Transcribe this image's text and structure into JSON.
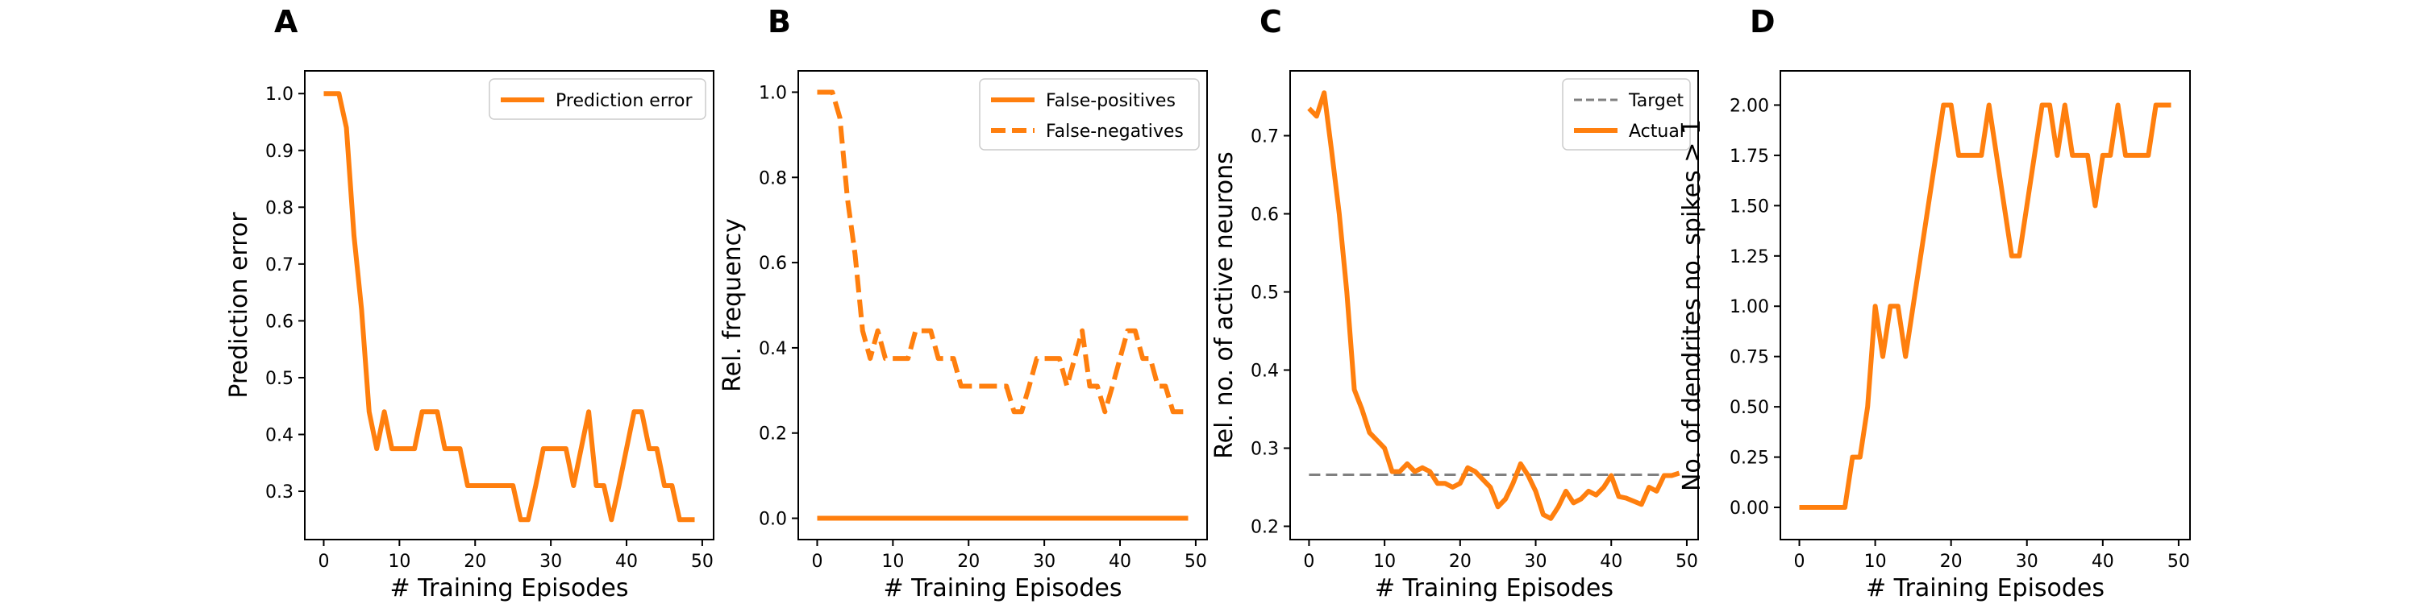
{
  "figure": {
    "background": "#ffffff"
  },
  "chart_data": [
    {
      "panel": "A",
      "type": "line",
      "xlabel": "# Training Episodes",
      "ylabel": "Prediction error",
      "xlim": [
        -2.5,
        51.5
      ],
      "ylim": [
        0.215,
        1.04
      ],
      "xticks": [
        0,
        10,
        20,
        30,
        40,
        50
      ],
      "yticks": [
        0.3,
        0.4,
        0.5,
        0.6,
        0.7,
        0.8,
        0.9,
        1.0
      ],
      "ytick_labels": [
        "0.3",
        "0.4",
        "0.5",
        "0.6",
        "0.7",
        "0.8",
        "0.9",
        "1.0"
      ],
      "grid": false,
      "legend": "top-right",
      "series": [
        {
          "name": "Prediction error",
          "color": "#ff7f0e",
          "style": "solid",
          "x": [
            0,
            1,
            2,
            3,
            4,
            5,
            6,
            7,
            8,
            9,
            10,
            11,
            12,
            13,
            14,
            15,
            16,
            17,
            18,
            19,
            20,
            21,
            22,
            23,
            24,
            25,
            26,
            27,
            28,
            29,
            30,
            31,
            32,
            33,
            34,
            35,
            36,
            37,
            38,
            39,
            40,
            41,
            42,
            43,
            44,
            45,
            46,
            47,
            48,
            49
          ],
          "y": [
            1.0,
            1.0,
            1.0,
            0.94,
            0.75,
            0.62,
            0.44,
            0.375,
            0.44,
            0.375,
            0.375,
            0.375,
            0.375,
            0.44,
            0.44,
            0.44,
            0.375,
            0.375,
            0.375,
            0.31,
            0.31,
            0.31,
            0.31,
            0.31,
            0.31,
            0.31,
            0.25,
            0.25,
            0.31,
            0.375,
            0.375,
            0.375,
            0.375,
            0.31,
            0.375,
            0.44,
            0.31,
            0.31,
            0.25,
            0.31,
            0.375,
            0.44,
            0.44,
            0.375,
            0.375,
            0.31,
            0.31,
            0.25,
            0.25,
            0.25
          ]
        }
      ]
    },
    {
      "panel": "B",
      "type": "line",
      "xlabel": "# Training Episodes",
      "ylabel": "Rel. frequency",
      "xlim": [
        -2.5,
        51.5
      ],
      "ylim": [
        -0.05,
        1.05
      ],
      "xticks": [
        0,
        10,
        20,
        30,
        40,
        50
      ],
      "yticks": [
        0.0,
        0.2,
        0.4,
        0.6,
        0.8,
        1.0
      ],
      "ytick_labels": [
        "0.0",
        "0.2",
        "0.4",
        "0.6",
        "0.8",
        "1.0"
      ],
      "grid": false,
      "legend": "top-right",
      "series": [
        {
          "name": "False-positives",
          "color": "#ff7f0e",
          "style": "solid",
          "x": [
            0,
            49
          ],
          "y": [
            0.0,
            0.0
          ]
        },
        {
          "name": "False-negatives",
          "color": "#ff7f0e",
          "style": "dashed",
          "x": [
            0,
            1,
            2,
            3,
            4,
            5,
            6,
            7,
            8,
            9,
            10,
            11,
            12,
            13,
            14,
            15,
            16,
            17,
            18,
            19,
            20,
            21,
            22,
            23,
            24,
            25,
            26,
            27,
            28,
            29,
            30,
            31,
            32,
            33,
            34,
            35,
            36,
            37,
            38,
            39,
            40,
            41,
            42,
            43,
            44,
            45,
            46,
            47,
            48,
            49
          ],
          "y": [
            1.0,
            1.0,
            1.0,
            0.94,
            0.75,
            0.62,
            0.44,
            0.375,
            0.44,
            0.375,
            0.375,
            0.375,
            0.375,
            0.44,
            0.44,
            0.44,
            0.375,
            0.375,
            0.375,
            0.31,
            0.31,
            0.31,
            0.31,
            0.31,
            0.31,
            0.31,
            0.25,
            0.25,
            0.31,
            0.375,
            0.375,
            0.375,
            0.375,
            0.31,
            0.375,
            0.44,
            0.31,
            0.31,
            0.25,
            0.31,
            0.375,
            0.44,
            0.44,
            0.375,
            0.375,
            0.31,
            0.31,
            0.25,
            0.25,
            0.25
          ]
        }
      ]
    },
    {
      "panel": "C",
      "type": "line",
      "xlabel": "# Training Episodes",
      "ylabel": "Rel. no. of active neurons",
      "xlim": [
        -2.5,
        51.5
      ],
      "ylim": [
        0.183,
        0.783
      ],
      "xticks": [
        0,
        10,
        20,
        30,
        40,
        50
      ],
      "yticks": [
        0.2,
        0.3,
        0.4,
        0.5,
        0.6,
        0.7
      ],
      "ytick_labels": [
        "0.2",
        "0.3",
        "0.4",
        "0.5",
        "0.6",
        "0.7"
      ],
      "grid": false,
      "legend": "top-right",
      "series": [
        {
          "name": "Target",
          "color": "#808080",
          "style": "dashed",
          "x": [
            0,
            49
          ],
          "y": [
            0.266,
            0.266
          ]
        },
        {
          "name": "Actual",
          "color": "#ff7f0e",
          "style": "solid",
          "x": [
            0,
            1,
            2,
            3,
            4,
            5,
            6,
            7,
            8,
            9,
            10,
            11,
            12,
            13,
            14,
            15,
            16,
            17,
            18,
            19,
            20,
            21,
            22,
            23,
            24,
            25,
            26,
            27,
            28,
            29,
            30,
            31,
            32,
            33,
            34,
            35,
            36,
            37,
            38,
            39,
            40,
            41,
            42,
            43,
            44,
            45,
            46,
            47,
            48,
            49
          ],
          "y": [
            0.735,
            0.725,
            0.755,
            0.68,
            0.6,
            0.5,
            0.375,
            0.35,
            0.32,
            0.31,
            0.3,
            0.27,
            0.27,
            0.28,
            0.27,
            0.275,
            0.27,
            0.255,
            0.255,
            0.25,
            0.255,
            0.275,
            0.27,
            0.26,
            0.25,
            0.225,
            0.235,
            0.255,
            0.28,
            0.265,
            0.245,
            0.215,
            0.21,
            0.225,
            0.245,
            0.23,
            0.235,
            0.245,
            0.24,
            0.25,
            0.265,
            0.238,
            0.236,
            0.232,
            0.228,
            0.25,
            0.245,
            0.265,
            0.265,
            0.268
          ]
        }
      ]
    },
    {
      "panel": "D",
      "type": "line",
      "xlabel": "# Training Episodes",
      "ylabel": "No. of dendrites no. spikes > 1",
      "xlim": [
        -2.5,
        51.5
      ],
      "ylim": [
        -0.16,
        2.17
      ],
      "xticks": [
        0,
        10,
        20,
        30,
        40,
        50
      ],
      "yticks": [
        0.0,
        0.25,
        0.5,
        0.75,
        1.0,
        1.25,
        1.5,
        1.75,
        2.0
      ],
      "ytick_labels": [
        "0.00",
        "0.25",
        "0.50",
        "0.75",
        "1.00",
        "1.25",
        "1.50",
        "1.75",
        "2.00"
      ],
      "grid": false,
      "legend": "none",
      "series": [
        {
          "color": "#ff7f0e",
          "style": "solid",
          "x": [
            0,
            1,
            2,
            3,
            4,
            5,
            6,
            7,
            8,
            9,
            10,
            11,
            12,
            13,
            14,
            15,
            16,
            17,
            18,
            19,
            20,
            21,
            22,
            23,
            24,
            25,
            26,
            27,
            28,
            29,
            30,
            31,
            32,
            33,
            34,
            35,
            36,
            37,
            38,
            39,
            40,
            41,
            42,
            43,
            44,
            45,
            46,
            47,
            48,
            49
          ],
          "y": [
            0,
            0,
            0,
            0,
            0,
            0,
            0,
            0.25,
            0.25,
            0.5,
            1.0,
            0.75,
            1.0,
            1.0,
            0.75,
            1.0,
            1.25,
            1.5,
            1.75,
            2.0,
            2.0,
            1.75,
            1.75,
            1.75,
            1.75,
            2.0,
            1.75,
            1.5,
            1.25,
            1.25,
            1.5,
            1.75,
            2.0,
            2.0,
            1.75,
            2.0,
            1.75,
            1.75,
            1.75,
            1.5,
            1.75,
            1.75,
            2.0,
            1.75,
            1.75,
            1.75,
            1.75,
            2.0,
            2.0,
            2.0
          ]
        }
      ]
    }
  ]
}
